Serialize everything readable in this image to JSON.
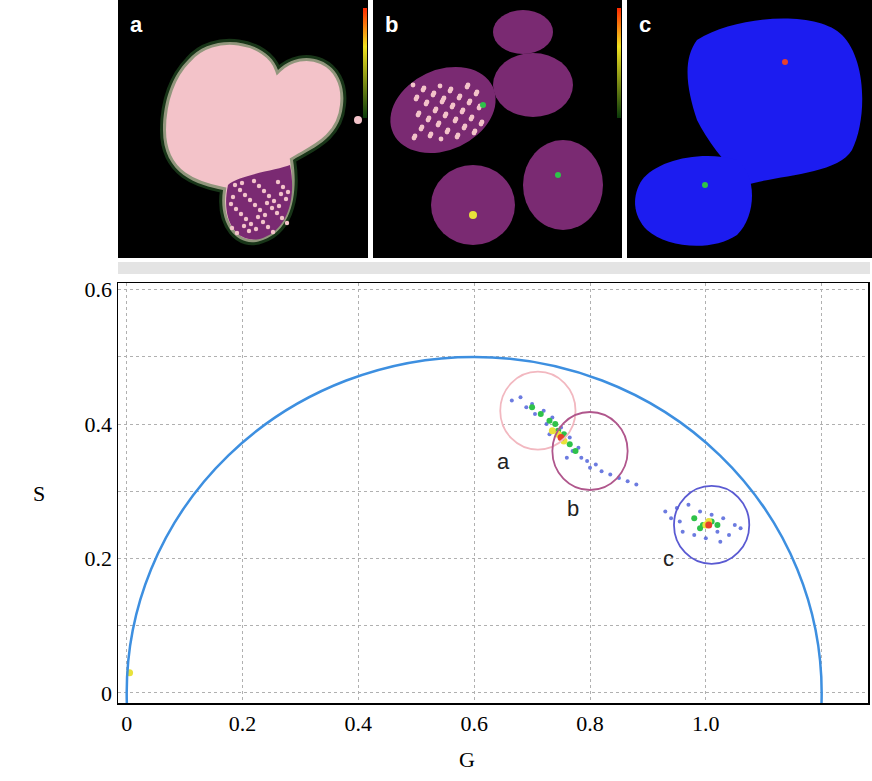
{
  "chart_data": {
    "type": "scatter",
    "x_label": "G",
    "y_label": "S",
    "xlim": [
      -0.015,
      1.28
    ],
    "ylim": [
      -0.015,
      0.61
    ],
    "xticks": [
      0,
      0.2,
      0.4,
      0.6,
      0.8,
      {
        "value": 1,
        "label": "1.0"
      }
    ],
    "yticks": [
      0,
      0.2,
      0.4,
      0.6
    ],
    "grid": true,
    "semicircle": {
      "center": [
        0.6,
        0
      ],
      "radius": [
        0.6,
        0.5
      ],
      "color": "#3d8fe0"
    },
    "series": [
      {
        "color": "#3b4fd6",
        "marker": "circle",
        "x": [
          0.665,
          0.68,
          0.69,
          0.7,
          0.705,
          0.72,
          0.725,
          0.735,
          0.74,
          0.75,
          0.755,
          0.765,
          0.77,
          0.78,
          0.785,
          0.795,
          0.8,
          0.81,
          0.82,
          0.835,
          0.85,
          0.865,
          0.88,
          0.76,
          0.73,
          0.93,
          0.94,
          0.95,
          0.96,
          0.97,
          0.98,
          0.99,
          1.0,
          1.01,
          1.02,
          1.03,
          1.04,
          1.05,
          1.06,
          0.955,
          1.025
        ],
        "y": [
          0.435,
          0.44,
          0.425,
          0.43,
          0.415,
          0.42,
          0.4,
          0.41,
          0.39,
          0.395,
          0.375,
          0.38,
          0.36,
          0.365,
          0.35,
          0.345,
          0.335,
          0.34,
          0.33,
          0.325,
          0.32,
          0.315,
          0.31,
          0.35,
          0.385,
          0.27,
          0.26,
          0.275,
          0.24,
          0.28,
          0.235,
          0.27,
          0.23,
          0.265,
          0.24,
          0.26,
          0.235,
          0.25,
          0.245,
          0.255,
          0.225
        ]
      },
      {
        "color": "#2fc24a",
        "marker": "circle",
        "x": [
          0.7,
          0.715,
          0.73,
          0.745,
          0.755,
          0.765,
          0.775,
          0.74,
          0.98,
          0.995,
          1.01,
          0.99,
          1.02
        ],
        "y": [
          0.425,
          0.415,
          0.405,
          0.39,
          0.385,
          0.37,
          0.36,
          0.4,
          0.26,
          0.25,
          0.255,
          0.245,
          0.25
        ]
      },
      {
        "color": "#e8e23a",
        "marker": "circle",
        "x": [
          0.745,
          0.755,
          0.735,
          1.0,
          1.005,
          0.005
        ],
        "y": [
          0.385,
          0.375,
          0.39,
          0.25,
          0.255,
          0.03
        ]
      },
      {
        "color": "#e8402a",
        "marker": "circle",
        "x": [
          0.75,
          1.005
        ],
        "y": [
          0.38,
          0.25
        ]
      }
    ],
    "circles": [
      {
        "center": [
          0.71,
          0.42
        ],
        "radius": [
          0.065,
          0.058
        ],
        "color": "#f2b8c0"
      },
      {
        "center": [
          0.8,
          0.36
        ],
        "radius": [
          0.065,
          0.058
        ],
        "color": "#b0568c"
      },
      {
        "center": [
          1.01,
          0.25
        ],
        "radius": [
          0.065,
          0.058
        ],
        "color": "#5a5ad2"
      }
    ],
    "annotations": [
      {
        "text": "a",
        "x": 0.65,
        "y": 0.345
      },
      {
        "text": "b",
        "x": 0.77,
        "y": 0.275
      },
      {
        "text": "c",
        "x": 0.935,
        "y": 0.2
      }
    ]
  },
  "image_panels": [
    "a",
    "b",
    "c"
  ]
}
